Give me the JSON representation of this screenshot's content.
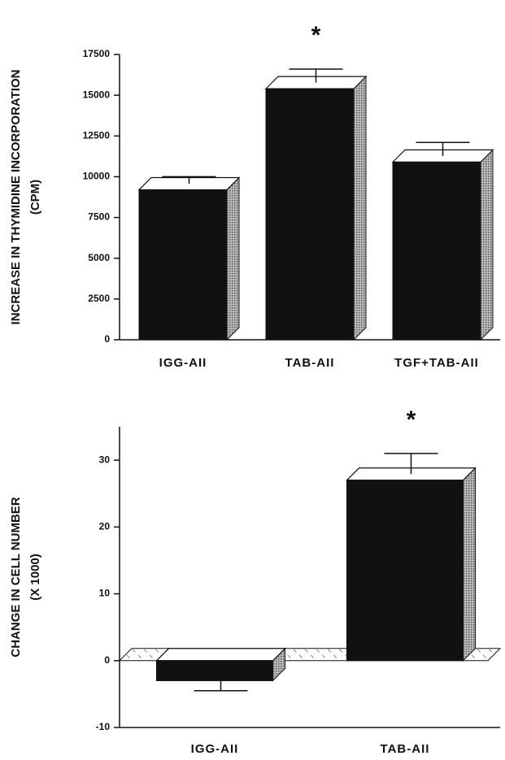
{
  "chart_data": [
    {
      "type": "bar",
      "ylabel": [
        "INCREASE IN THYMIDINE INCORPORATION",
        "(CPM)"
      ],
      "categories": [
        "IGG-AII",
        "TAB-AII",
        "TGF+TAB-AII"
      ],
      "values": [
        9200,
        15400,
        10900
      ],
      "errors": [
        800,
        1200,
        1200
      ],
      "color": "#111111",
      "annotation": "*",
      "ylim": [
        0,
        17500
      ],
      "yticks": [
        0,
        2500,
        5000,
        7500,
        10000,
        12500,
        15000,
        17500
      ]
    },
    {
      "type": "bar",
      "ylabel": [
        "CHANGE IN CELL NUMBER",
        "(X 1000)"
      ],
      "categories": [
        "IGG-AII",
        "TAB-AII"
      ],
      "values": [
        -3,
        27
      ],
      "errors": [
        1.5,
        4
      ],
      "color": "#111111",
      "annotation": "*",
      "ylim": [
        -10,
        35
      ],
      "yticks": [
        -10,
        0,
        10,
        20,
        30
      ]
    }
  ]
}
